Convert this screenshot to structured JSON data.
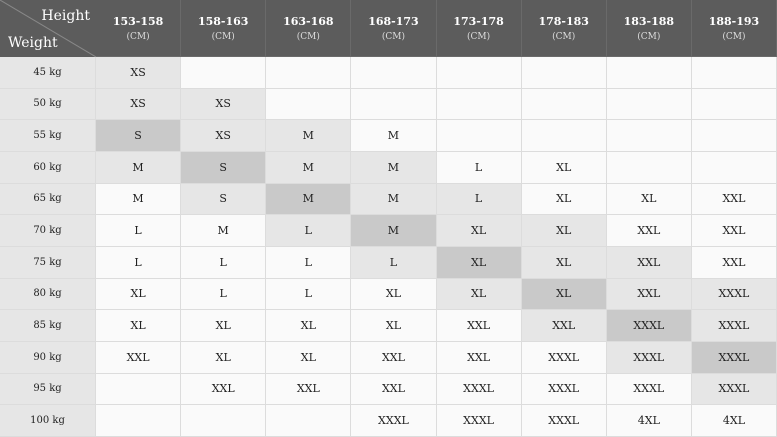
{
  "corner": {
    "height_label": "Height",
    "weight_label": "Weight"
  },
  "columns": [
    {
      "range": "153-158",
      "unit": "(CM)"
    },
    {
      "range": "158-163",
      "unit": "(CM)"
    },
    {
      "range": "163-168",
      "unit": "(CM)"
    },
    {
      "range": "168-173",
      "unit": "(CM)"
    },
    {
      "range": "173-178",
      "unit": "(CM)"
    },
    {
      "range": "178-183",
      "unit": "(CM)"
    },
    {
      "range": "183-188",
      "unit": "(CM)"
    },
    {
      "range": "188-193",
      "unit": "(CM)"
    }
  ],
  "rows": [
    {
      "weight": "45 kg",
      "sizes": [
        "XS",
        null,
        null,
        null,
        null,
        null,
        null,
        null
      ]
    },
    {
      "weight": "50 kg",
      "sizes": [
        "XS",
        "XS",
        null,
        null,
        null,
        null,
        null,
        null
      ]
    },
    {
      "weight": "55 kg",
      "sizes": [
        "S",
        "XS",
        "M",
        "M",
        null,
        null,
        null,
        null
      ]
    },
    {
      "weight": "60 kg",
      "sizes": [
        "M",
        "S",
        "M",
        "M",
        "L",
        "XL",
        null,
        null
      ]
    },
    {
      "weight": "65 kg",
      "sizes": [
        "M",
        "S",
        "M",
        "M",
        "L",
        "XL",
        "XL",
        "XXL"
      ]
    },
    {
      "weight": "70 kg",
      "sizes": [
        "L",
        "M",
        "L",
        "M",
        "XL",
        "XL",
        "XXL",
        "XXL"
      ]
    },
    {
      "weight": "75 kg",
      "sizes": [
        "L",
        "L",
        "L",
        "L",
        "XL",
        "XL",
        "XXL",
        "XXL"
      ]
    },
    {
      "weight": "80 kg",
      "sizes": [
        "XL",
        "L",
        "L",
        "XL",
        "XL",
        "XL",
        "XXL",
        "XXXL"
      ]
    },
    {
      "weight": "85 kg",
      "sizes": [
        "XL",
        "XL",
        "XL",
        "XL",
        "XXL",
        "XXL",
        "XXXL",
        "XXXL"
      ]
    },
    {
      "weight": "90 kg",
      "sizes": [
        "XXL",
        "XL",
        "XL",
        "XXL",
        "XXL",
        "XXXL",
        "XXXL",
        "XXXL"
      ]
    },
    {
      "weight": "95 kg",
      "sizes": [
        null,
        "XXL",
        "XXL",
        "XXL",
        "XXXL",
        "XXXL",
        "XXXL",
        "XXXL"
      ]
    },
    {
      "weight": "100 kg",
      "sizes": [
        null,
        null,
        null,
        "XXXL",
        "XXXL",
        "XXXL",
        "4XL",
        "4XL"
      ]
    }
  ]
}
